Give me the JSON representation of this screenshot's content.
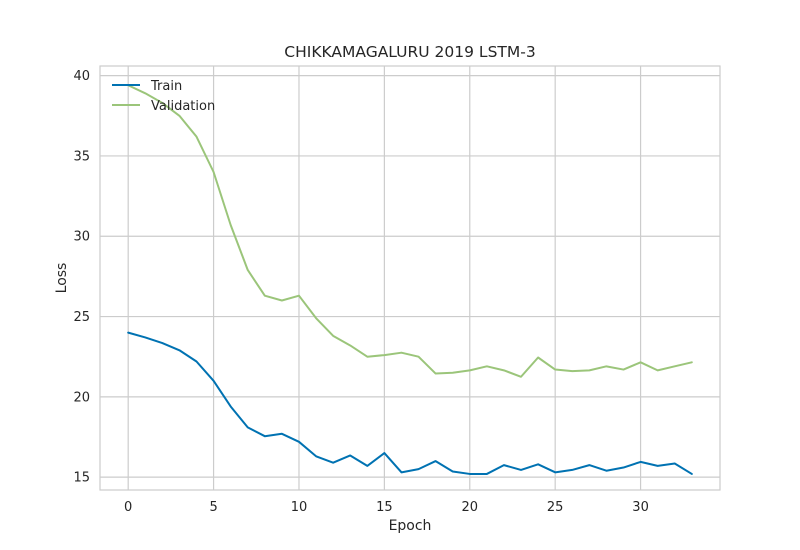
{
  "chart_data": {
    "type": "line",
    "title": "CHIKKAMAGALURU 2019 LSTM-3",
    "xlabel": "Epoch",
    "ylabel": "Loss",
    "xlim": [
      -1.65,
      34.65
    ],
    "ylim": [
      14.2,
      40.6
    ],
    "xticks": [
      0,
      5,
      10,
      15,
      20,
      25,
      30
    ],
    "yticks": [
      15,
      20,
      25,
      30,
      35,
      40
    ],
    "grid": true,
    "legend_position": "top-left",
    "x": [
      0,
      1,
      2,
      3,
      4,
      5,
      6,
      7,
      8,
      9,
      10,
      11,
      12,
      13,
      14,
      15,
      16,
      17,
      18,
      19,
      20,
      21,
      22,
      23,
      24,
      25,
      26,
      27,
      28,
      29,
      30,
      31,
      32,
      33
    ],
    "series": [
      {
        "name": "Train",
        "color": "#0072B2",
        "values": [
          24.0,
          23.7,
          23.35,
          22.9,
          22.2,
          21.0,
          19.4,
          18.1,
          17.55,
          17.7,
          17.2,
          16.3,
          15.9,
          16.35,
          15.7,
          16.5,
          15.3,
          15.5,
          16.0,
          15.35,
          15.2,
          15.2,
          15.75,
          15.45,
          15.8,
          15.3,
          15.45,
          15.75,
          15.4,
          15.6,
          15.95,
          15.7,
          15.85,
          15.2
        ]
      },
      {
        "name": "Validation",
        "color": "#9BC57A",
        "values": [
          39.4,
          38.9,
          38.3,
          37.5,
          36.2,
          34.0,
          30.7,
          27.9,
          26.3,
          26.0,
          26.3,
          24.9,
          23.8,
          23.2,
          22.5,
          22.6,
          22.75,
          22.5,
          21.45,
          21.5,
          21.65,
          21.9,
          21.65,
          21.25,
          22.45,
          21.7,
          21.6,
          21.65,
          21.9,
          21.7,
          22.15,
          21.65,
          21.9,
          22.15
        ]
      }
    ]
  }
}
